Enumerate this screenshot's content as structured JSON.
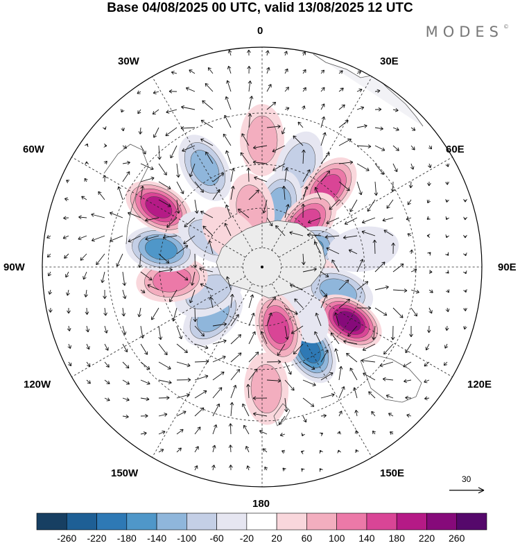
{
  "title": "Base 04/08/2025 00 UTC, valid 13/08/2025 12 UTC",
  "brand": "MODES",
  "brand_mark": "©",
  "longitude_labels": {
    "n0": "0",
    "e30": "30E",
    "e60": "60E",
    "e90": "90E",
    "e120": "120E",
    "e150": "150E",
    "s180": "180",
    "w150": "150W",
    "w120": "120W",
    "w90": "90W",
    "w60": "60W",
    "w30": "30W"
  },
  "vector_reference": {
    "value": "30"
  },
  "colorbar": {
    "tick_labels": [
      "-260",
      "-220",
      "-180",
      "-140",
      "-100",
      "-60",
      "-20",
      "20",
      "60",
      "100",
      "140",
      "180",
      "220",
      "260"
    ],
    "colors": [
      "#173f62",
      "#1e5f95",
      "#2e79b5",
      "#4f97c9",
      "#8fb6db",
      "#c4cfe6",
      "#e6e6f1",
      "#ffffff",
      "#f9d7dc",
      "#f3aebf",
      "#ec79a8",
      "#d94596",
      "#b51a86",
      "#860a7a",
      "#55086b"
    ]
  },
  "anomalies": [
    {
      "lon": 0,
      "lat": -30,
      "value": 80
    },
    {
      "lon": 20,
      "lat": -38,
      "value": -100
    },
    {
      "lon": 40,
      "lat": -40,
      "value": 150
    },
    {
      "lon": 15,
      "lat": -58,
      "value": -120
    },
    {
      "lon": 45,
      "lat": -58,
      "value": 170
    },
    {
      "lon": 70,
      "lat": -65,
      "value": -150
    },
    {
      "lon": 80,
      "lat": -40,
      "value": -40
    },
    {
      "lon": 100,
      "lat": -68,
      "value": 80
    },
    {
      "lon": 108,
      "lat": -50,
      "value": -110
    },
    {
      "lon": 122,
      "lat": -40,
      "value": 240
    },
    {
      "lon": 150,
      "lat": -43,
      "value": -200
    },
    {
      "lon": 140,
      "lat": -60,
      "value": -60
    },
    {
      "lon": 178,
      "lat": -32,
      "value": 90
    },
    {
      "lon": 165,
      "lat": -58,
      "value": 150
    },
    {
      "lon": -135,
      "lat": -55,
      "value": -130
    },
    {
      "lon": -115,
      "lat": -60,
      "value": -100
    },
    {
      "lon": -98,
      "lat": -45,
      "value": 140
    },
    {
      "lon": -80,
      "lat": -40,
      "value": -170
    },
    {
      "lon": -60,
      "lat": -33,
      "value": 190
    },
    {
      "lon": -30,
      "lat": -35,
      "value": -140
    },
    {
      "lon": -60,
      "lat": -60,
      "value": -90
    },
    {
      "lon": -10,
      "lat": -60,
      "value": 80
    },
    {
      "lon": -45,
      "lat": -68,
      "value": 40
    }
  ]
}
